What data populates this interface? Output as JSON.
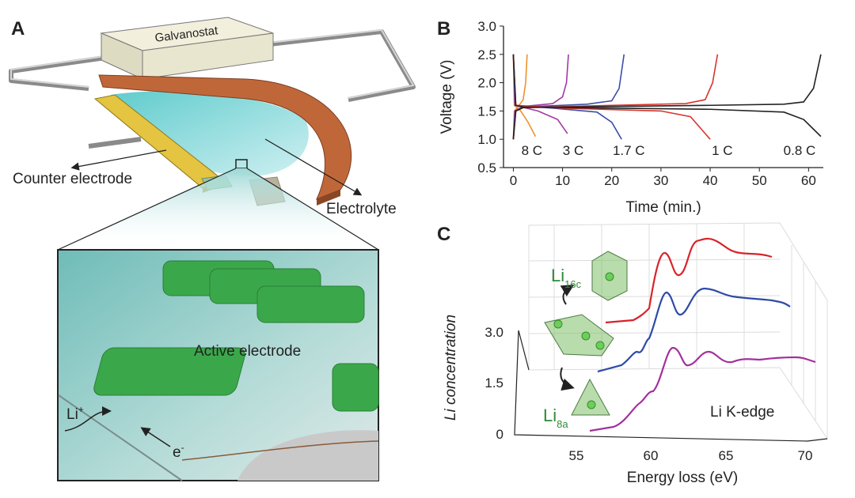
{
  "panels": {
    "a": {
      "label": "A",
      "galvanostat": "Galvanostat",
      "counter_electrode": "Counter electrode",
      "electrolyte": "Electrolyte",
      "active_electrode": "Active electrode",
      "li_ion": {
        "text": "Li",
        "superscript": "+"
      },
      "electron": {
        "text": "e",
        "superscript": "-"
      }
    },
    "c": {
      "label": "C",
      "xlabel": "Energy loss (eV)",
      "ylabel": "Li concentration",
      "xticks": [
        55,
        60,
        65,
        70
      ],
      "yticks": [
        0,
        1.5,
        {
          "value": 3,
          "label": "3.0"
        }
      ],
      "annotation": "Li K-edge",
      "sites": [
        {
          "text": "Li",
          "subscript": "16c"
        },
        {
          "text": "Li",
          "subscript": "8a"
        }
      ]
    }
  },
  "chart_data": {
    "type": "line",
    "label": "B",
    "xlabel": "Time (min.)",
    "ylabel": "Voltage (V)",
    "xlim": [
      -2,
      63
    ],
    "ylim": [
      0.5,
      3
    ],
    "xticks": [
      0,
      10,
      20,
      30,
      40,
      50,
      60
    ],
    "yticks": [
      0.5,
      {
        "value": 1,
        "label": "1.0"
      },
      1.5,
      {
        "value": 2,
        "label": "2.0"
      },
      2.5,
      {
        "value": 3,
        "label": "3.0"
      }
    ],
    "series": [
      {
        "name": "8 C",
        "color": "#f0922a",
        "charge": {
          "x": [
            0,
            0.2,
            1,
            2,
            2.5,
            2.8
          ],
          "values": [
            1.0,
            1.5,
            1.58,
            1.7,
            2.0,
            2.5
          ]
        },
        "discharge": {
          "x": [
            0,
            0.2,
            1.5,
            3,
            4.5
          ],
          "values": [
            2.5,
            1.6,
            1.5,
            1.3,
            1.05
          ]
        }
      },
      {
        "name": "3 C",
        "color": "#a23aa6",
        "charge": {
          "x": [
            0,
            0.3,
            2,
            8,
            10,
            10.8,
            11.2
          ],
          "values": [
            1.0,
            1.5,
            1.58,
            1.63,
            1.75,
            2.0,
            2.5
          ]
        },
        "discharge": {
          "x": [
            0,
            0.3,
            5,
            9,
            11
          ],
          "values": [
            2.5,
            1.6,
            1.5,
            1.35,
            1.1
          ]
        }
      },
      {
        "name": "1.7 C",
        "color": "#3a4fa8",
        "charge": {
          "x": [
            0,
            0.4,
            2,
            15,
            20,
            21.5,
            22.5
          ],
          "values": [
            1.0,
            1.5,
            1.57,
            1.62,
            1.68,
            1.9,
            2.5
          ]
        },
        "discharge": {
          "x": [
            0,
            0.4,
            8,
            17,
            20,
            22
          ],
          "values": [
            2.5,
            1.6,
            1.55,
            1.48,
            1.3,
            1.0
          ]
        }
      },
      {
        "name": "1 C",
        "color": "#d8342e",
        "charge": {
          "x": [
            0,
            0.5,
            2,
            20,
            35,
            39,
            40.5,
            41.5
          ],
          "values": [
            1.0,
            1.5,
            1.56,
            1.6,
            1.63,
            1.7,
            2.0,
            2.5
          ]
        },
        "discharge": {
          "x": [
            0,
            0.5,
            10,
            30,
            36,
            40
          ],
          "values": [
            2.5,
            1.6,
            1.55,
            1.5,
            1.4,
            1.0
          ]
        }
      },
      {
        "name": "0.8 C",
        "color": "#222222",
        "charge": {
          "x": [
            0,
            0.5,
            2,
            20,
            40,
            55,
            59,
            61,
            62.5
          ],
          "values": [
            1.0,
            1.5,
            1.56,
            1.58,
            1.6,
            1.62,
            1.66,
            1.9,
            2.5
          ]
        },
        "discharge": {
          "x": [
            0,
            0.5,
            2,
            20,
            40,
            55,
            59,
            62.5
          ],
          "values": [
            2.5,
            1.6,
            1.57,
            1.55,
            1.53,
            1.48,
            1.35,
            1.05
          ]
        }
      }
    ]
  }
}
